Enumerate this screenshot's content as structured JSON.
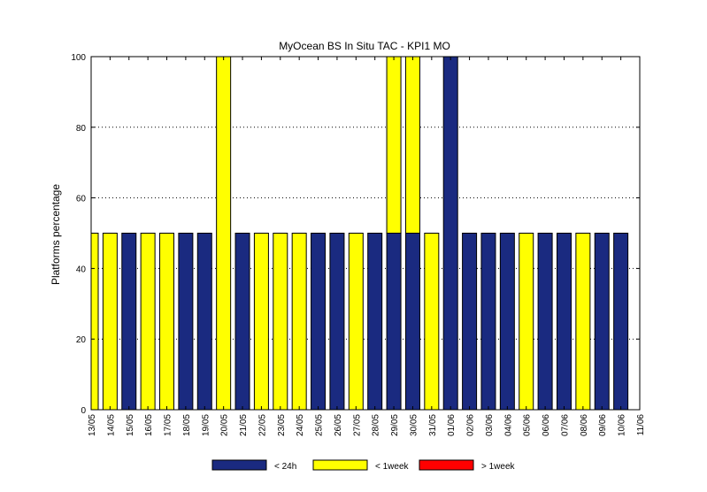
{
  "chart_data": {
    "type": "bar",
    "title": "MyOcean  BS In Situ TAC - KPI1  MO",
    "xlabel": "",
    "ylabel": "Platforms percentage",
    "ylim": [
      0,
      100
    ],
    "yticks": [
      "0",
      "20",
      "40",
      "60",
      "80",
      "100"
    ],
    "categories": [
      "13/05",
      "14/05",
      "15/05",
      "16/05",
      "17/05",
      "18/05",
      "19/05",
      "20/05",
      "21/05",
      "22/05",
      "23/05",
      "24/05",
      "25/05",
      "26/05",
      "27/05",
      "28/05",
      "29/05",
      "30/05",
      "31/05",
      "01/06",
      "02/06",
      "03/06",
      "04/06",
      "05/06",
      "06/06",
      "07/06",
      "08/06",
      "09/06",
      "10/06",
      "11/06"
    ],
    "series": [
      {
        "name": "< 24h",
        "color": "#1a2a80",
        "values": [
          0,
          0,
          50,
          0,
          0,
          50,
          50,
          0,
          50,
          0,
          0,
          0,
          50,
          50,
          0,
          50,
          50,
          50,
          0,
          100,
          50,
          50,
          50,
          0,
          50,
          50,
          0,
          50,
          50,
          0
        ]
      },
      {
        "name": "< 1week",
        "color": "#ffff00",
        "values": [
          50,
          50,
          0,
          50,
          50,
          0,
          0,
          100,
          0,
          50,
          50,
          50,
          0,
          0,
          50,
          0,
          50,
          50,
          50,
          0,
          0,
          0,
          0,
          50,
          0,
          0,
          50,
          0,
          0,
          0
        ]
      },
      {
        "name": "> 1week",
        "color": "#ff0000",
        "values": [
          0,
          0,
          0,
          0,
          0,
          0,
          0,
          0,
          0,
          0,
          0,
          0,
          0,
          0,
          0,
          0,
          0,
          0,
          0,
          0,
          0,
          0,
          0,
          0,
          0,
          0,
          0,
          0,
          0,
          0
        ]
      }
    ],
    "grid": "horizontal dotted",
    "legend": "bottom"
  }
}
